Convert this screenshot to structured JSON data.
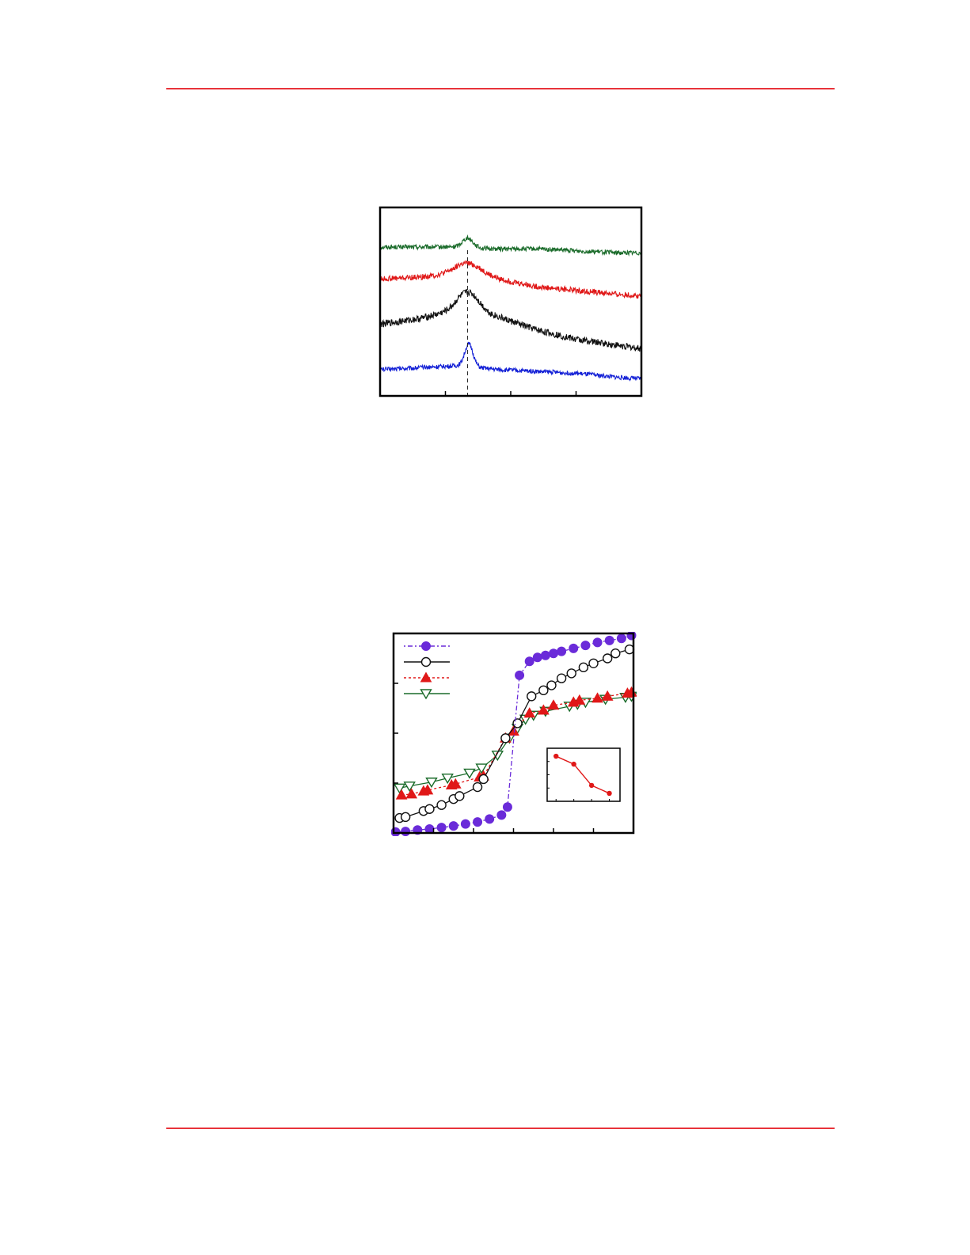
{
  "page": {
    "rule_color": "#e8333a"
  },
  "chart_data": [
    {
      "type": "line",
      "title": "",
      "xlabel": "",
      "ylabel": "",
      "x_range": [
        0,
        100
      ],
      "x_ticks": [
        25,
        50,
        75
      ],
      "reference_line_x": 33.5,
      "grid": false,
      "series": [
        {
          "color": "#1a6b2a",
          "baseline": [
            0.79,
            0.79,
            0.79,
            0.78,
            0.78,
            0.77,
            0.76,
            0.76
          ],
          "x": [
            0,
            15,
            30,
            45,
            60,
            75,
            90,
            100
          ],
          "peak_x": 33.5,
          "peak_height": 0.05,
          "peak_width": 2.0,
          "noise": 0.012
        },
        {
          "color": "#e01818",
          "baseline": [
            0.62,
            0.63,
            0.65,
            0.62,
            0.58,
            0.56,
            0.54,
            0.53
          ],
          "x": [
            0,
            15,
            30,
            45,
            60,
            75,
            90,
            100
          ],
          "peak_x": 34.0,
          "peak_height": 0.06,
          "peak_width": 5.0,
          "noise": 0.015
        },
        {
          "color": "#111111",
          "baseline": [
            0.38,
            0.41,
            0.46,
            0.42,
            0.35,
            0.3,
            0.27,
            0.25
          ],
          "x": [
            0,
            15,
            30,
            45,
            60,
            75,
            90,
            100
          ],
          "peak_x": 34.0,
          "peak_height": 0.1,
          "peak_width": 4.0,
          "noise": 0.018
        },
        {
          "color": "#1320d6",
          "baseline": [
            0.14,
            0.15,
            0.16,
            0.14,
            0.13,
            0.12,
            0.1,
            0.09
          ],
          "x": [
            0,
            15,
            30,
            45,
            60,
            75,
            90,
            100
          ],
          "peak_x": 34.0,
          "peak_height": 0.12,
          "peak_width": 1.6,
          "noise": 0.012
        }
      ]
    },
    {
      "type": "line",
      "title": "",
      "xlabel": "",
      "ylabel": "",
      "x_range": [
        -3,
        3
      ],
      "y_range": [
        -1,
        1
      ],
      "x_ticks": [
        -2,
        -1,
        0,
        1,
        2
      ],
      "y_ticks": [
        -0.5,
        0,
        0.5
      ],
      "grid": false,
      "legend": {
        "position": "top-left"
      },
      "series": [
        {
          "marker": "filled-circle",
          "color": "#6a2bd9",
          "line": "dash-dot",
          "x": [
            -2.95,
            -2.7,
            -2.4,
            -2.1,
            -1.8,
            -1.5,
            -1.2,
            -0.9,
            -0.6,
            -0.3,
            -0.15,
            0.15,
            0.4,
            0.6,
            0.8,
            1.0,
            1.2,
            1.5,
            1.8,
            2.1,
            2.4,
            2.7,
            2.95
          ],
          "y": [
            -0.99,
            -0.985,
            -0.97,
            -0.96,
            -0.945,
            -0.93,
            -0.91,
            -0.89,
            -0.86,
            -0.82,
            -0.74,
            0.58,
            0.72,
            0.76,
            0.78,
            0.8,
            0.82,
            0.85,
            0.88,
            0.91,
            0.93,
            0.95,
            0.98
          ]
        },
        {
          "marker": "open-circle",
          "color": "#111111",
          "line": "solid",
          "x": [
            -2.85,
            -2.7,
            -2.25,
            -2.1,
            -1.8,
            -1.5,
            -1.35,
            -0.9,
            -0.75,
            -0.2,
            0.1,
            0.45,
            0.75,
            0.95,
            1.2,
            1.45,
            1.75,
            2.0,
            2.35,
            2.55,
            2.9
          ],
          "y": [
            -0.85,
            -0.84,
            -0.78,
            -0.76,
            -0.72,
            -0.66,
            -0.63,
            -0.54,
            -0.46,
            -0.05,
            0.1,
            0.37,
            0.43,
            0.48,
            0.55,
            0.6,
            0.66,
            0.7,
            0.75,
            0.8,
            0.84
          ]
        },
        {
          "marker": "filled-triangle",
          "color": "#e01818",
          "line": "dotted",
          "x": [
            -2.8,
            -2.55,
            -2.25,
            -2.15,
            -1.55,
            -1.45,
            -0.85,
            -0.75,
            -0.2,
            0.0,
            0.4,
            0.75,
            1.0,
            1.5,
            1.65,
            2.1,
            2.35,
            2.85,
            2.95
          ],
          "y": [
            -0.62,
            -0.61,
            -0.58,
            -0.57,
            -0.52,
            -0.51,
            -0.44,
            -0.43,
            -0.05,
            0.02,
            0.2,
            0.23,
            0.28,
            0.31,
            0.33,
            0.35,
            0.37,
            0.4,
            0.41
          ]
        },
        {
          "marker": "open-triangle-down",
          "color": "#1a6b2a",
          "line": "solid",
          "x": [
            -2.85,
            -2.6,
            -2.05,
            -1.65,
            -1.1,
            -0.8,
            -0.4,
            -0.1,
            0.1,
            0.3,
            0.5,
            0.8,
            1.4,
            1.6,
            1.8,
            2.3,
            2.8,
            2.95
          ],
          "y": [
            -0.55,
            -0.53,
            -0.49,
            -0.45,
            -0.4,
            -0.35,
            -0.22,
            -0.05,
            0.05,
            0.14,
            0.18,
            0.22,
            0.27,
            0.29,
            0.31,
            0.34,
            0.36,
            0.37
          ]
        }
      ],
      "inset": {
        "type": "line",
        "color": "#e01818",
        "x": [
          1,
          2,
          3,
          4
        ],
        "y": [
          0.85,
          0.7,
          0.3,
          0.15
        ],
        "x_range": [
          0.5,
          4.6
        ],
        "y_range": [
          0,
          1
        ],
        "x_ticks": [
          1,
          2,
          3,
          4
        ],
        "y_ticks": [
          0.25,
          0.5,
          0.75
        ]
      }
    }
  ]
}
